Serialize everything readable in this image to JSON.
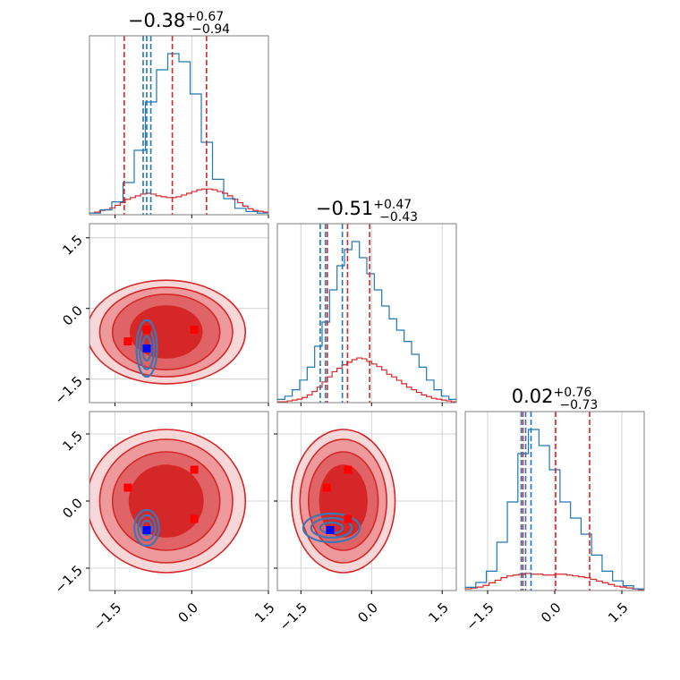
{
  "chart_data": {
    "type": "corner",
    "parameters": 3,
    "colors": {
      "red": "#d62728",
      "blue": "#1f77b4",
      "grid": "#c8c8c8"
    },
    "grid": true,
    "titles": [
      {
        "value": "−0.38",
        "upper": "+0.67",
        "lower": "−0.94"
      },
      {
        "value": "−0.51",
        "upper": "+0.47",
        "lower": "−0.43"
      },
      {
        "value": "0.02",
        "upper": "+0.76",
        "lower": "−0.73"
      }
    ],
    "tick_values": [
      -1.5,
      0.0,
      1.5
    ],
    "tick_labels": [
      "−1.5",
      "0.0",
      "1.5"
    ],
    "axis_ranges": [
      [
        -2.0,
        1.5
      ],
      [
        -2.0,
        1.8
      ],
      [
        -2.0,
        2.0
      ]
    ],
    "quantile_lines": {
      "red": [
        [
          -1.32,
          -0.38,
          0.29
        ],
        [
          -0.94,
          -0.51,
          -0.04
        ],
        [
          -0.71,
          0.02,
          0.78
        ]
      ],
      "blue": [
        [
          -0.95,
          -0.88,
          -0.8
        ],
        [
          -1.09,
          -0.98,
          -0.62
        ],
        [
          -0.75,
          -0.65,
          -0.53
        ]
      ]
    },
    "markers": {
      "red": [
        {
          "panel": "1-0",
          "points": [
            [
              -1.25,
              -0.7
            ],
            [
              -0.88,
              -0.45
            ],
            [
              0.05,
              -0.45
            ]
          ]
        },
        {
          "panel": "2-0",
          "points": [
            [
              -1.25,
              0.3
            ],
            [
              0.05,
              0.7
            ],
            [
              0.05,
              -0.4
            ]
          ]
        },
        {
          "panel": "2-1",
          "points": [
            [
              -0.95,
              0.3
            ],
            [
              -0.5,
              0.7
            ],
            [
              -0.5,
              -0.4
            ]
          ]
        }
      ],
      "blue": [
        {
          "panel": "1-0",
          "points": [
            [
              -0.88,
              -0.85
            ]
          ]
        },
        {
          "panel": "2-0",
          "points": [
            [
              -0.88,
              -0.65
            ]
          ]
        },
        {
          "panel": "2-1",
          "points": [
            [
              -0.88,
              -0.65
            ]
          ]
        }
      ]
    },
    "red_hist": [
      [
        0.02,
        0.03,
        0.05,
        0.06,
        0.08,
        0.11,
        0.14,
        0.18,
        0.2,
        0.22,
        0.24,
        0.25,
        0.24,
        0.22,
        0.21,
        0.2,
        0.2,
        0.21,
        0.23,
        0.25,
        0.27,
        0.29,
        0.3,
        0.3,
        0.29,
        0.27,
        0.25,
        0.22,
        0.18,
        0.14,
        0.1,
        0.07,
        0.05,
        0.04,
        0.03
      ],
      [
        0.01,
        0.01,
        0.02,
        0.03,
        0.04,
        0.06,
        0.09,
        0.13,
        0.18,
        0.24,
        0.3,
        0.36,
        0.4,
        0.44,
        0.47,
        0.5,
        0.52,
        0.51,
        0.48,
        0.45,
        0.42,
        0.38,
        0.33,
        0.3,
        0.26,
        0.22,
        0.18,
        0.15,
        0.12,
        0.09,
        0.07,
        0.05,
        0.04,
        0.03,
        0.02,
        0.01
      ],
      [
        0.02,
        0.03,
        0.04,
        0.06,
        0.09,
        0.12,
        0.15,
        0.17,
        0.18,
        0.19,
        0.2,
        0.19,
        0.19,
        0.18,
        0.18,
        0.19,
        0.19,
        0.18,
        0.17,
        0.16,
        0.15,
        0.13,
        0.11,
        0.09,
        0.07,
        0.05,
        0.04,
        0.03,
        0.02,
        0.01
      ]
    ],
    "blue_hist": [
      [
        0.01,
        0.03,
        0.08,
        0.2,
        0.4,
        0.7,
        0.9,
        1.0,
        0.95,
        0.75,
        0.45,
        0.22,
        0.1,
        0.04,
        0.02,
        0.01
      ],
      [
        0.02,
        0.04,
        0.08,
        0.14,
        0.22,
        0.35,
        0.5,
        0.7,
        0.85,
        0.95,
        1.0,
        0.9,
        0.8,
        0.7,
        0.6,
        0.52,
        0.45,
        0.38,
        0.3,
        0.22,
        0.14,
        0.08,
        0.04,
        0.02
      ],
      [
        0.02,
        0.05,
        0.12,
        0.3,
        0.55,
        0.85,
        1.0,
        0.9,
        0.75,
        0.55,
        0.45,
        0.35,
        0.22,
        0.12,
        0.06,
        0.03,
        0.01
      ]
    ],
    "red_contours": [
      {
        "panel": "1-0",
        "cx": -0.5,
        "cy": -0.5,
        "rx": [
          1.55,
          1.3,
          1.05,
          0.7
        ],
        "ry": [
          1.1,
          0.95,
          0.8,
          0.55
        ]
      },
      {
        "panel": "2-0",
        "cx": -0.5,
        "cy": 0.0,
        "rx": [
          1.55,
          1.3,
          1.05,
          0.72
        ],
        "ry": [
          1.6,
          1.38,
          1.1,
          0.8
        ]
      },
      {
        "panel": "2-1",
        "cx": -0.6,
        "cy": 0.0,
        "rx": [
          1.1,
          0.92,
          0.74,
          0.5
        ],
        "ry": [
          1.6,
          1.38,
          1.1,
          0.8
        ]
      }
    ],
    "blue_contours": [
      {
        "panel": "1-0",
        "cx": -0.88,
        "cy": -0.85,
        "rx": [
          0.2,
          0.14,
          0.08
        ],
        "ry": [
          0.6,
          0.44,
          0.26
        ]
      },
      {
        "panel": "2-0",
        "cx": -0.88,
        "cy": -0.6,
        "rx": [
          0.24,
          0.17,
          0.1
        ],
        "ry": [
          0.4,
          0.28,
          0.16
        ]
      },
      {
        "panel": "2-1",
        "cx": -0.85,
        "cy": -0.6,
        "rx": [
          0.6,
          0.43,
          0.24
        ],
        "ry": [
          0.32,
          0.22,
          0.12
        ]
      }
    ]
  }
}
